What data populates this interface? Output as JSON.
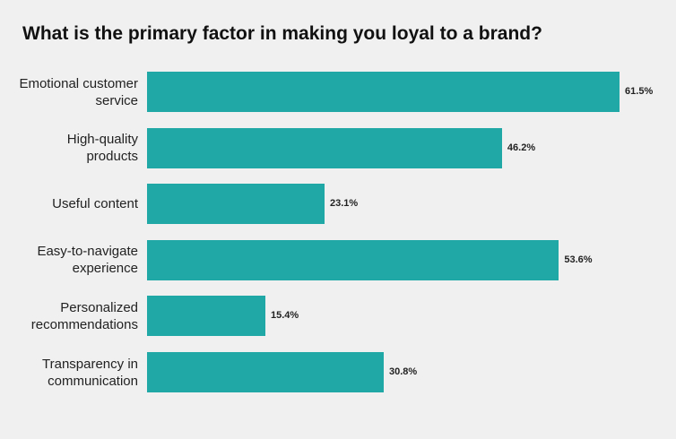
{
  "chart_data": {
    "type": "hbar",
    "title": "What is the primary factor in making you loyal to a brand?",
    "categories": [
      "Emotional customer service",
      "High-quality products",
      "Useful content",
      "Easy-to-navigate experience",
      "Personalized recommendations",
      "Transparency in communication"
    ],
    "values": [
      61.5,
      46.2,
      23.1,
      53.6,
      15.4,
      30.8
    ],
    "value_labels": [
      "61.5%",
      "46.2%",
      "23.1%",
      "53.6%",
      "15.4%",
      "30.8%"
    ],
    "color": "#1fa8a5"
  }
}
